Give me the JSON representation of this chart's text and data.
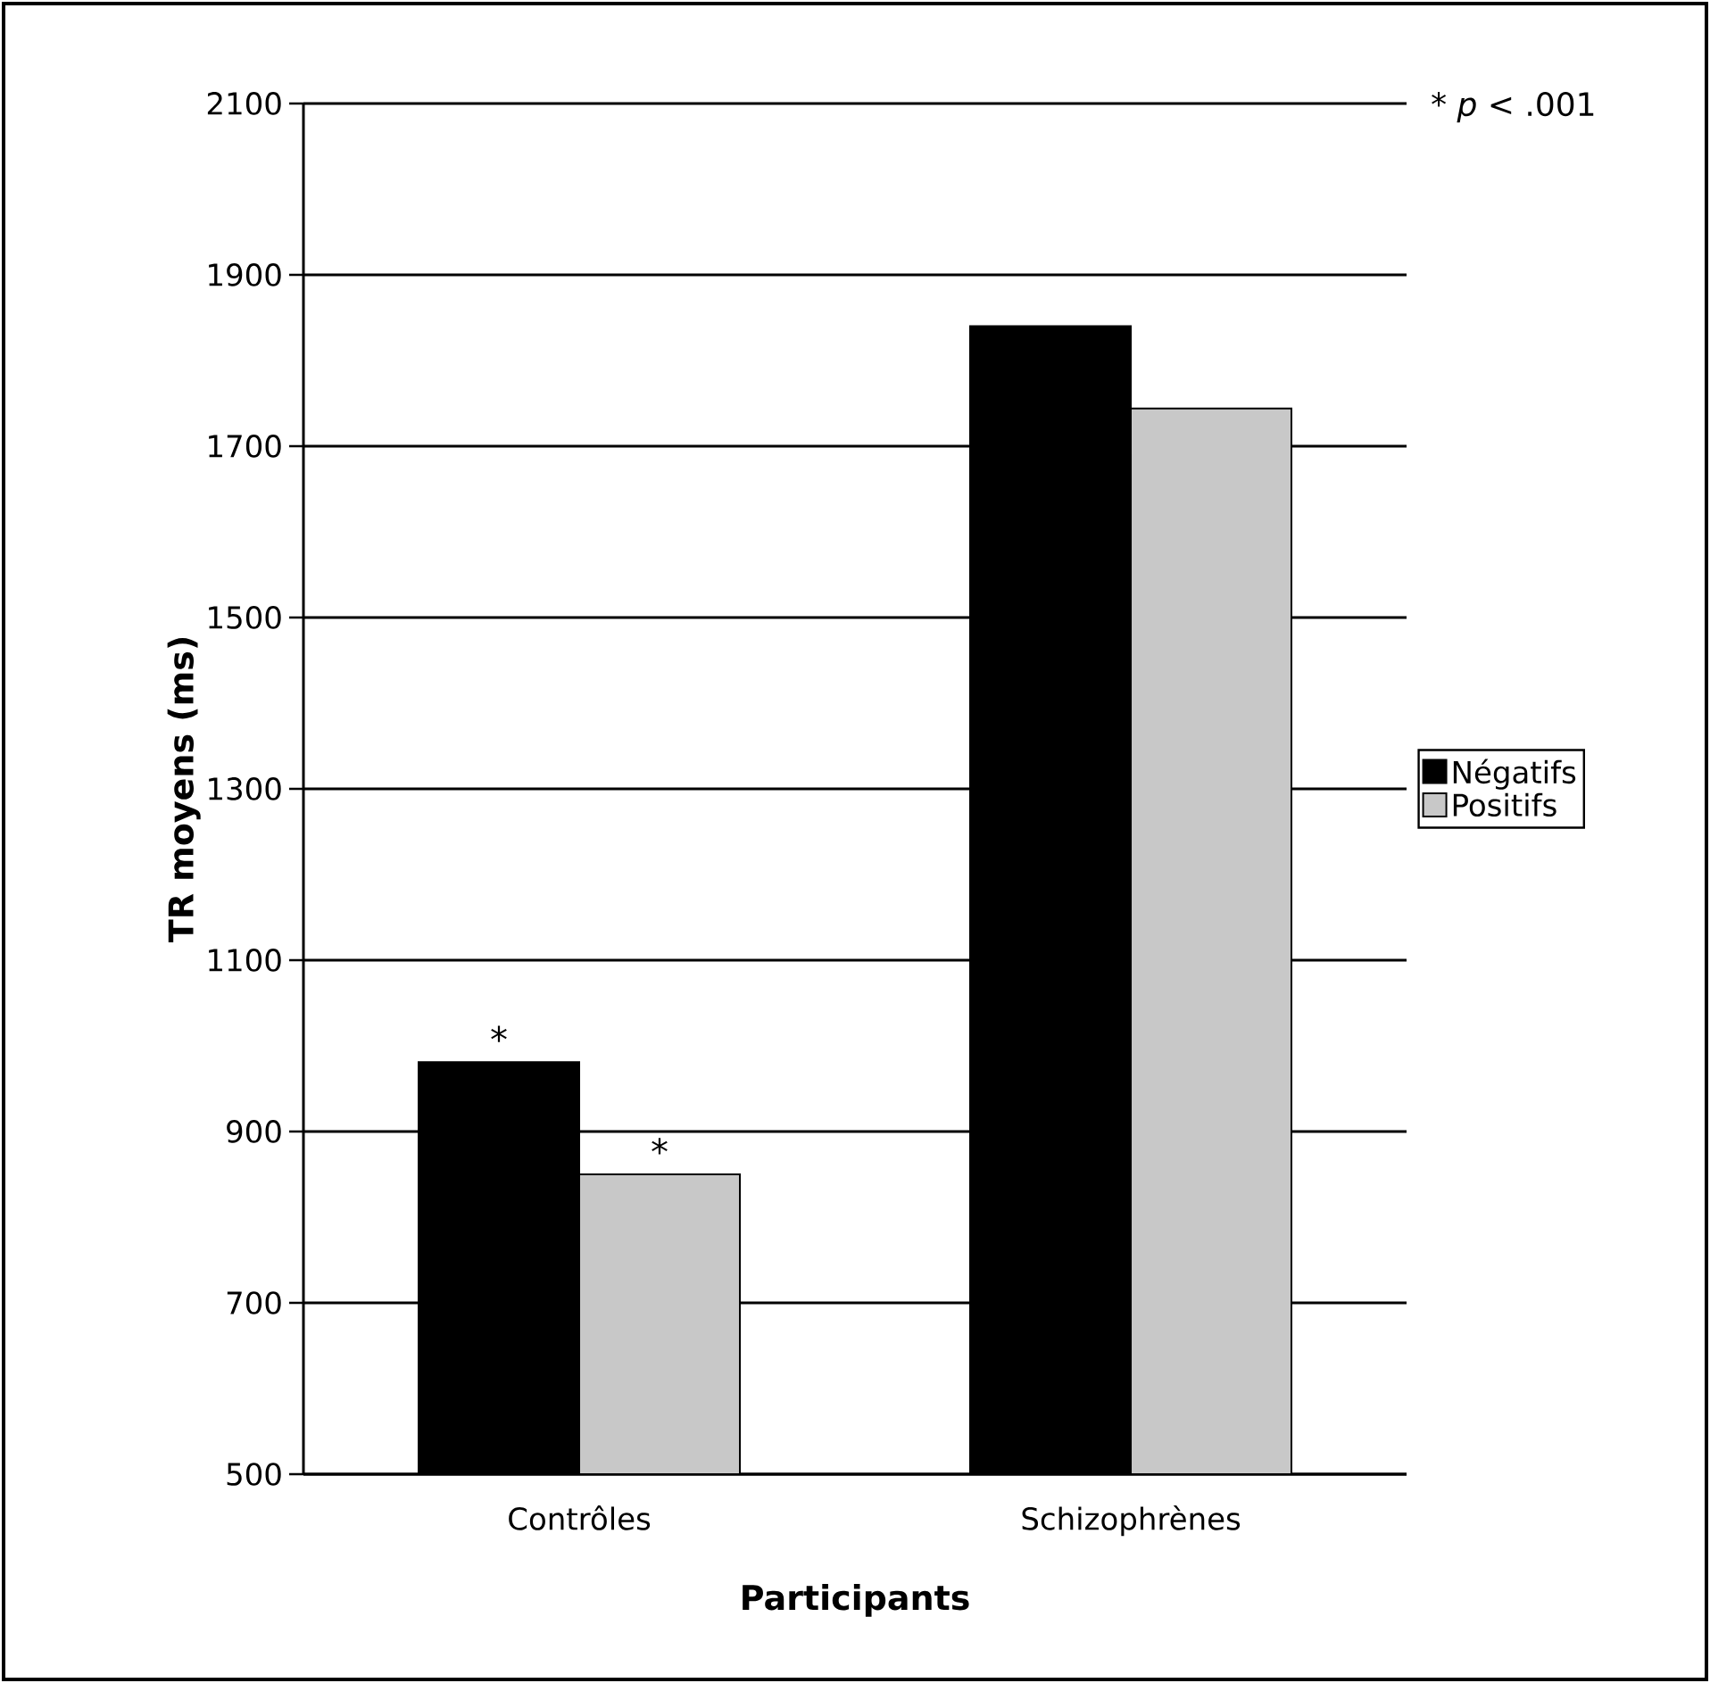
{
  "chart_data": {
    "type": "bar",
    "xlabel": "Participants",
    "ylabel": "TR moyens (ms)",
    "categories": [
      "Contrôles",
      "Schizophrènes"
    ],
    "series": [
      {
        "name": "Négatifs",
        "color": "#000000",
        "values": [
          981,
          1840
        ]
      },
      {
        "name": "Positifs",
        "color": "#c8c8c8",
        "values": [
          850,
          1744
        ]
      }
    ],
    "ylim": [
      500,
      2100
    ],
    "yticks": [
      500,
      700,
      900,
      1100,
      1300,
      1500,
      1700,
      1900,
      2100
    ],
    "grid": "y",
    "legend": "right",
    "annotations": [
      {
        "text": "*",
        "x": "Contrôles",
        "y": 981
      },
      {
        "text": "*",
        "x": "Contrôles",
        "y": 850
      },
      "* *p* < .001"
    ]
  }
}
